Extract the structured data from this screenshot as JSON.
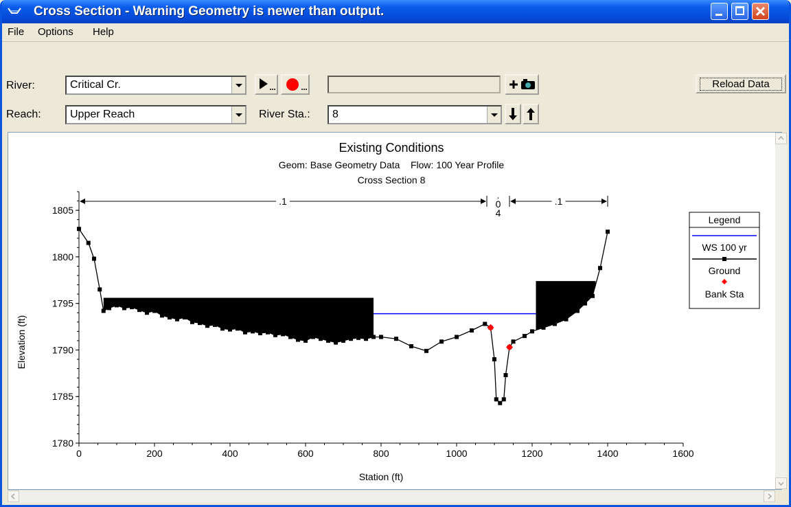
{
  "window": {
    "title": "Cross Section - Warning Geometry is newer than output."
  },
  "menu": [
    "File",
    "Options",
    "Help"
  ],
  "toolbar": {
    "river_label": "River:",
    "river_value": "Critical Cr.",
    "reach_label": "Reach:",
    "reach_value": "Upper Reach",
    "station_label": "River Sta.:",
    "station_value": "8",
    "reload_label": "Reload Data",
    "text_box_value": ""
  },
  "chart_data": {
    "type": "line",
    "title": "Existing Conditions",
    "subtitle": "Geom: Base Geometry Data    Flow: 100 Year Profile",
    "subtitle2": "Cross Section 8",
    "xlabel": "Station (ft)",
    "ylabel": "Elevation (ft)",
    "xlim": [
      0,
      1600
    ],
    "ylim": [
      1780,
      1807
    ],
    "xticks": [
      0,
      200,
      400,
      600,
      800,
      1000,
      1200,
      1400,
      1600
    ],
    "yticks": [
      1780,
      1785,
      1790,
      1795,
      1800,
      1805
    ],
    "manning": [
      {
        "label": ".1",
        "x_from": 0,
        "x_to": 1080
      },
      {
        "label": ".04",
        "x_from": 1080,
        "x_to": 1140
      },
      {
        "label": ".1",
        "x_from": 1140,
        "x_to": 1400
      }
    ],
    "legend": {
      "title": "Legend",
      "entries": [
        "WS 100 yr",
        "Ground",
        "Bank Sta"
      ]
    },
    "ws_elevation": 1793.9,
    "ws_x_range": [
      780,
      1210
    ],
    "ground": [
      [
        0,
        1803
      ],
      [
        25,
        1801.5
      ],
      [
        40,
        1799.8
      ],
      [
        55,
        1796.5
      ],
      [
        65,
        1794.2
      ],
      [
        80,
        1794.5
      ],
      [
        100,
        1794.8
      ],
      [
        120,
        1794.5
      ],
      [
        140,
        1794.6
      ],
      [
        160,
        1794.3
      ],
      [
        180,
        1794.0
      ],
      [
        200,
        1794.2
      ],
      [
        220,
        1793.7
      ],
      [
        240,
        1793.5
      ],
      [
        260,
        1793.3
      ],
      [
        280,
        1793.5
      ],
      [
        300,
        1793.0
      ],
      [
        320,
        1792.9
      ],
      [
        340,
        1792.6
      ],
      [
        360,
        1792.7
      ],
      [
        380,
        1792.3
      ],
      [
        400,
        1792.2
      ],
      [
        420,
        1792.3
      ],
      [
        440,
        1791.9
      ],
      [
        460,
        1792.0
      ],
      [
        480,
        1791.8
      ],
      [
        500,
        1791.9
      ],
      [
        520,
        1791.6
      ],
      [
        540,
        1791.7
      ],
      [
        560,
        1791.4
      ],
      [
        580,
        1791.1
      ],
      [
        600,
        1791.0
      ],
      [
        620,
        1791.4
      ],
      [
        640,
        1791.2
      ],
      [
        660,
        1791.0
      ],
      [
        680,
        1790.8
      ],
      [
        700,
        1791.0
      ],
      [
        720,
        1791.2
      ],
      [
        740,
        1791.3
      ],
      [
        760,
        1791.2
      ],
      [
        780,
        1791.4
      ],
      [
        800,
        1791.4
      ],
      [
        840,
        1791.2
      ],
      [
        880,
        1790.4
      ],
      [
        920,
        1789.9
      ],
      [
        960,
        1790.9
      ],
      [
        1000,
        1791.4
      ],
      [
        1040,
        1792.1
      ],
      [
        1075,
        1792.8
      ],
      [
        1090,
        1792.4
      ],
      [
        1100,
        1789.0
      ],
      [
        1105,
        1784.7
      ],
      [
        1115,
        1784.3
      ],
      [
        1125,
        1784.7
      ],
      [
        1130,
        1787.3
      ],
      [
        1140,
        1790.3
      ],
      [
        1150,
        1790.9
      ],
      [
        1180,
        1791.5
      ],
      [
        1200,
        1792.0
      ],
      [
        1230,
        1792.4
      ],
      [
        1260,
        1792.8
      ],
      [
        1290,
        1793.3
      ],
      [
        1320,
        1794.2
      ],
      [
        1340,
        1795.0
      ],
      [
        1360,
        1795.8
      ],
      [
        1380,
        1798.8
      ],
      [
        1400,
        1802.7
      ]
    ],
    "bank_stations": [
      [
        1090,
        1792.4
      ],
      [
        1140,
        1790.3
      ]
    ],
    "ineffective": [
      {
        "x_from": 65,
        "x_to": 780,
        "elev": 1795.6
      },
      {
        "x_from": 1210,
        "x_to": 1368,
        "elev": 1797.4
      }
    ],
    "colors": {
      "ws": "#0000ff",
      "ground": "#000000",
      "bank": "#ff0000"
    }
  }
}
